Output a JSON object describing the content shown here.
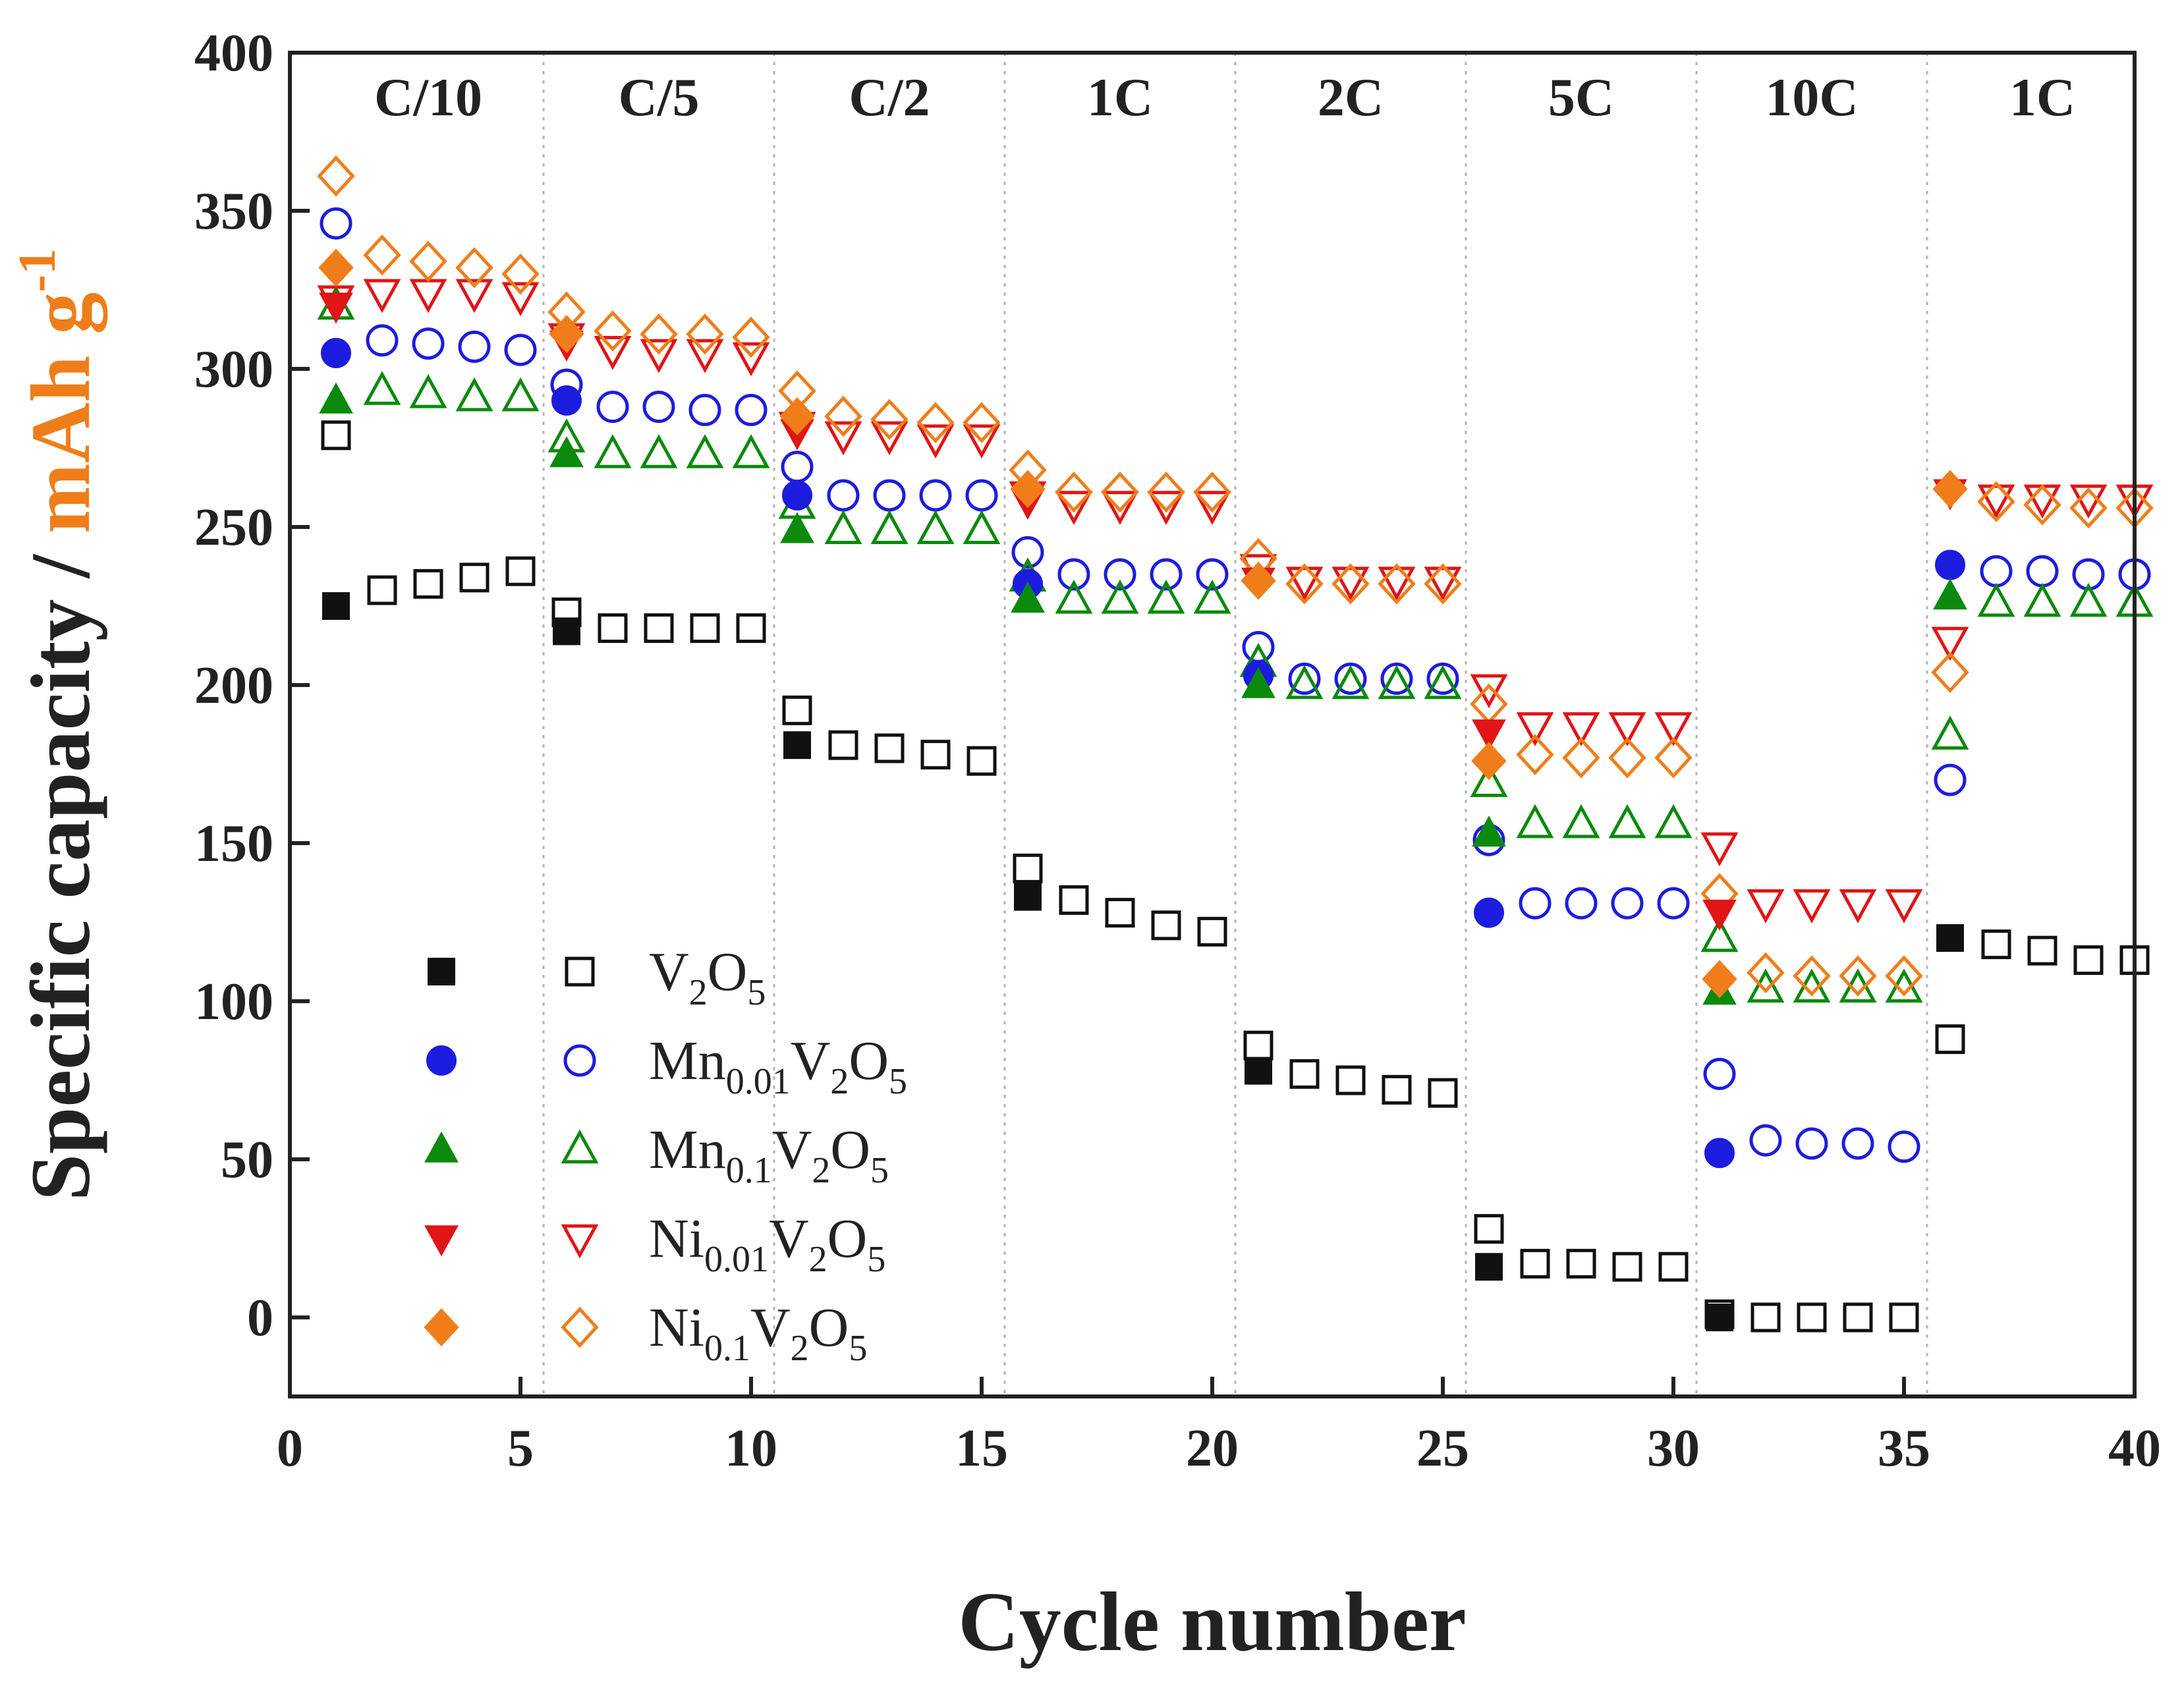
{
  "chart_data": {
    "type": "scatter",
    "title": "",
    "xlabel": "Cycle number",
    "ylabel": {
      "prefix": "Specific capacity / ",
      "unit_main": "mAh g",
      "unit_sup": "-1"
    },
    "xlim": [
      0,
      40
    ],
    "ylim": [
      -25,
      400
    ],
    "xticks": [
      0,
      5,
      10,
      15,
      20,
      25,
      30,
      35,
      40
    ],
    "yticks": [
      0,
      50,
      100,
      150,
      200,
      250,
      300,
      350,
      400
    ],
    "grid": "vertical dotted separators between rate steps",
    "rate_separators": [
      5.5,
      10.5,
      15.5,
      20.5,
      25.5,
      30.5,
      35.5
    ],
    "rate_labels": [
      {
        "label": "C/10",
        "x": 3
      },
      {
        "label": "C/5",
        "x": 8
      },
      {
        "label": "C/2",
        "x": 13
      },
      {
        "label": "1C",
        "x": 18
      },
      {
        "label": "2C",
        "x": 23
      },
      {
        "label": "5C",
        "x": 28
      },
      {
        "label": "10C",
        "x": 33
      },
      {
        "label": "1C",
        "x": 38
      }
    ],
    "legend_position": "bottom-left",
    "series": [
      {
        "name": "V2O5",
        "legend_parts": [
          [
            "V",
            ""
          ],
          [
            "2",
            "sub"
          ],
          [
            "O",
            ""
          ],
          [
            "5",
            "sub"
          ]
        ],
        "color": "#111111",
        "marker": "square",
        "filled_x": [
          1,
          6,
          11,
          16,
          21,
          26,
          31,
          36
        ],
        "filled_values": [
          225,
          217,
          181,
          133,
          78,
          16,
          0,
          120
        ],
        "open_x": [
          1,
          2,
          3,
          4,
          5,
          6,
          7,
          8,
          9,
          10,
          11,
          12,
          13,
          14,
          15,
          16,
          17,
          18,
          19,
          20,
          21,
          22,
          23,
          24,
          25,
          26,
          27,
          28,
          29,
          30,
          31,
          32,
          33,
          34,
          35,
          36,
          37,
          38,
          39,
          40
        ],
        "open_values": [
          279,
          230,
          232,
          234,
          236,
          223,
          218,
          218,
          218,
          218,
          192,
          181,
          180,
          178,
          176,
          142,
          132,
          128,
          124,
          122,
          86,
          77,
          75,
          72,
          71,
          28,
          17,
          17,
          16,
          16,
          1,
          0,
          0,
          0,
          0,
          88,
          118,
          116,
          113,
          113
        ]
      },
      {
        "name": "Mn0.01V2O5",
        "legend_parts": [
          [
            "Mn",
            ""
          ],
          [
            "0.01",
            "sub"
          ],
          [
            "V",
            ""
          ],
          [
            "2",
            "sub"
          ],
          [
            "O",
            ""
          ],
          [
            "5",
            "sub"
          ]
        ],
        "color": "#1c1cde",
        "marker": "circle",
        "filled_x": [
          1,
          6,
          11,
          16,
          21,
          26,
          31,
          36
        ],
        "filled_values": [
          305,
          290,
          260,
          232,
          203,
          128,
          52,
          238
        ],
        "open_x": [
          1,
          2,
          3,
          4,
          5,
          6,
          7,
          8,
          9,
          10,
          11,
          12,
          13,
          14,
          15,
          16,
          17,
          18,
          19,
          20,
          21,
          22,
          23,
          24,
          25,
          26,
          27,
          28,
          29,
          30,
          31,
          32,
          33,
          34,
          35,
          36,
          37,
          38,
          39,
          40
        ],
        "open_values": [
          346,
          309,
          308,
          307,
          306,
          295,
          288,
          288,
          287,
          287,
          269,
          260,
          260,
          260,
          260,
          242,
          235,
          235,
          235,
          235,
          212,
          202,
          202,
          202,
          202,
          151,
          131,
          131,
          131,
          131,
          77,
          56,
          55,
          55,
          54,
          170,
          236,
          236,
          235,
          235
        ]
      },
      {
        "name": "Mn0.1V2O5",
        "legend_parts": [
          [
            "Mn",
            ""
          ],
          [
            "0.1",
            "sub"
          ],
          [
            "V",
            ""
          ],
          [
            "2",
            "sub"
          ],
          [
            "O",
            ""
          ],
          [
            "5",
            "sub"
          ]
        ],
        "color": "#0b8a0b",
        "marker": "triangle-up",
        "filled_x": [
          1,
          6,
          11,
          16,
          21,
          26,
          31,
          36
        ],
        "filled_values": [
          290,
          273,
          249,
          227,
          200,
          153,
          103,
          228
        ],
        "open_x": [
          1,
          2,
          3,
          4,
          5,
          6,
          7,
          8,
          9,
          10,
          11,
          12,
          13,
          14,
          15,
          16,
          17,
          18,
          19,
          20,
          21,
          22,
          23,
          24,
          25,
          26,
          27,
          28,
          29,
          30,
          31,
          32,
          33,
          34,
          35,
          36,
          37,
          38,
          39,
          40
        ],
        "open_values": [
          320,
          293,
          292,
          291,
          291,
          278,
          273,
          273,
          273,
          273,
          257,
          249,
          249,
          249,
          249,
          234,
          227,
          227,
          227,
          227,
          207,
          200,
          200,
          200,
          200,
          169,
          156,
          156,
          156,
          156,
          120,
          104,
          104,
          104,
          104,
          184,
          226,
          226,
          226,
          226
        ]
      },
      {
        "name": "Ni0.01V2O5",
        "legend_parts": [
          [
            "Ni",
            ""
          ],
          [
            "0.01",
            "sub"
          ],
          [
            "V",
            ""
          ],
          [
            "2",
            "sub"
          ],
          [
            "O",
            ""
          ],
          [
            "5",
            "sub"
          ]
        ],
        "color": "#e01515",
        "marker": "triangle-down",
        "filled_x": [
          1,
          6,
          11,
          16,
          21,
          26,
          31,
          36
        ],
        "filled_values": [
          320,
          308,
          280,
          258,
          233,
          185,
          128,
          261
        ],
        "open_x": [
          1,
          2,
          3,
          4,
          5,
          6,
          7,
          8,
          9,
          10,
          11,
          12,
          13,
          14,
          15,
          16,
          17,
          18,
          19,
          20,
          21,
          22,
          23,
          24,
          25,
          26,
          27,
          28,
          29,
          30,
          31,
          32,
          33,
          34,
          35,
          36,
          37,
          38,
          39,
          40
        ],
        "open_values": [
          322,
          324,
          324,
          324,
          323,
          310,
          306,
          305,
          305,
          304,
          282,
          279,
          279,
          278,
          278,
          260,
          257,
          257,
          257,
          257,
          237,
          233,
          233,
          233,
          233,
          199,
          187,
          187,
          187,
          187,
          149,
          131,
          131,
          131,
          131,
          214,
          259,
          259,
          259,
          259
        ]
      },
      {
        "name": "Ni0.1V2O5",
        "legend_parts": [
          [
            "Ni",
            ""
          ],
          [
            "0.1",
            "sub"
          ],
          [
            "V",
            ""
          ],
          [
            "2",
            "sub"
          ],
          [
            "O",
            ""
          ],
          [
            "5",
            "sub"
          ]
        ],
        "color": "#f07d1a",
        "marker": "diamond",
        "filled_x": [
          1,
          6,
          11,
          16,
          21,
          26,
          31,
          36
        ],
        "filled_values": [
          332,
          311,
          285,
          262,
          233,
          176,
          107,
          262
        ],
        "open_x": [
          1,
          2,
          3,
          4,
          5,
          6,
          7,
          8,
          9,
          10,
          11,
          12,
          13,
          14,
          15,
          16,
          17,
          18,
          19,
          20,
          21,
          22,
          23,
          24,
          25,
          26,
          27,
          28,
          29,
          30,
          31,
          32,
          33,
          34,
          35,
          36,
          37,
          38,
          39,
          40
        ],
        "open_values": [
          361,
          336,
          334,
          332,
          330,
          318,
          312,
          311,
          311,
          310,
          293,
          285,
          284,
          283,
          283,
          268,
          261,
          261,
          261,
          261,
          240,
          232,
          232,
          232,
          232,
          194,
          178,
          177,
          177,
          177,
          134,
          109,
          108,
          108,
          108,
          204,
          258,
          257,
          256,
          256
        ]
      }
    ]
  }
}
